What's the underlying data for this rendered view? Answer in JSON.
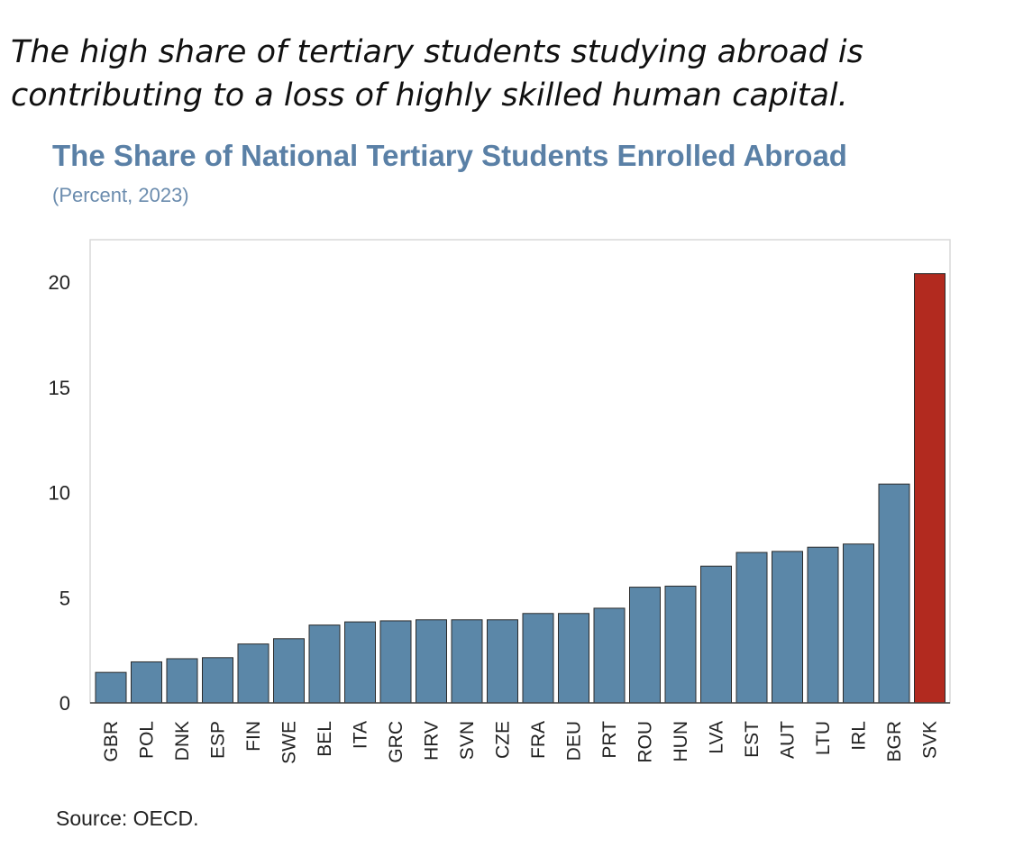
{
  "headline": "The high share of tertiary students studying abroad is contributing to a loss of highly skilled human capital.",
  "source": "Source: OECD.",
  "colors": {
    "bar": "#5b87a8",
    "highlight": "#b22a1f",
    "frame": "#d9d9d9",
    "title": "#5a80a6"
  },
  "chart_data": {
    "type": "bar",
    "title": "The Share of National Tertiary Students Enrolled Abroad",
    "subtitle": "(Percent, 2023)",
    "xlabel": "",
    "ylabel": "",
    "ylim": [
      0,
      22
    ],
    "yticks": [
      0,
      5,
      10,
      15,
      20
    ],
    "grid": false,
    "legend": "none",
    "highlight": "SVK",
    "categories": [
      "GBR",
      "POL",
      "DNK",
      "ESP",
      "FIN",
      "SWE",
      "BEL",
      "ITA",
      "GRC",
      "HRV",
      "SVN",
      "CZE",
      "FRA",
      "DEU",
      "PRT",
      "ROU",
      "HUN",
      "LVA",
      "EST",
      "AUT",
      "LTU",
      "IRL",
      "BGR",
      "SVK"
    ],
    "values": [
      1.45,
      1.95,
      2.1,
      2.15,
      2.8,
      3.05,
      3.7,
      3.85,
      3.9,
      3.95,
      3.95,
      3.95,
      4.25,
      4.25,
      4.5,
      5.5,
      5.55,
      6.5,
      7.15,
      7.2,
      7.4,
      7.55,
      10.4,
      20.4
    ]
  }
}
